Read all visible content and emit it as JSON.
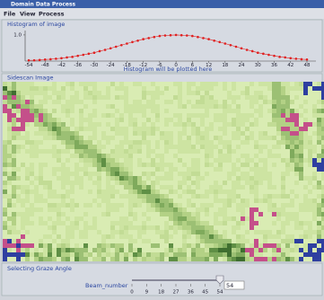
{
  "window_title": "Domain Data Process",
  "menu": [
    "File",
    "View",
    "Process"
  ],
  "histogram_panel": "Histogram of image",
  "chart_data": {
    "type": "line",
    "x_label": "Histogram will be plotted here",
    "color": "#e02020",
    "x": [
      -54,
      -52,
      -50,
      -48,
      -46,
      -44,
      -42,
      -40,
      -38,
      -36,
      -34,
      -32,
      -30,
      -28,
      -26,
      -24,
      -22,
      -20,
      -18,
      -16,
      -14,
      -12,
      -10,
      -8,
      -6,
      -4,
      -2,
      0,
      2,
      4,
      6,
      8,
      10,
      12,
      14,
      16,
      18,
      20,
      22,
      24,
      26,
      28,
      30,
      32,
      34,
      36,
      38,
      40,
      42,
      44,
      46,
      48
    ],
    "values": [
      0.03,
      0.03,
      0.04,
      0.06,
      0.07,
      0.09,
      0.11,
      0.14,
      0.16,
      0.2,
      0.24,
      0.28,
      0.32,
      0.38,
      0.43,
      0.49,
      0.55,
      0.61,
      0.67,
      0.73,
      0.78,
      0.84,
      0.88,
      0.92,
      0.96,
      0.98,
      0.99,
      1.0,
      0.99,
      0.98,
      0.96,
      0.92,
      0.88,
      0.84,
      0.78,
      0.73,
      0.67,
      0.61,
      0.55,
      0.49,
      0.43,
      0.38,
      0.32,
      0.28,
      0.24,
      0.2,
      0.16,
      0.14,
      0.11,
      0.09,
      0.07,
      0.06
    ],
    "xlim": [
      -54,
      48
    ],
    "ylim": [
      0,
      1.1
    ],
    "xticks": [
      -54,
      -48,
      -42,
      -36,
      -30,
      -24,
      -18,
      -12,
      -6,
      0,
      6,
      12,
      18,
      24,
      30,
      36,
      42,
      48
    ],
    "yticks": [
      {
        "value": 1,
        "label": "1.0"
      }
    ]
  },
  "image_panel": "Sidescan Image",
  "angle_panel": {
    "title": "Selecting Graze Angle",
    "slider_label": "Beam_number",
    "ticks": [
      0,
      9,
      18,
      27,
      36,
      45,
      54
    ],
    "value": 54
  }
}
